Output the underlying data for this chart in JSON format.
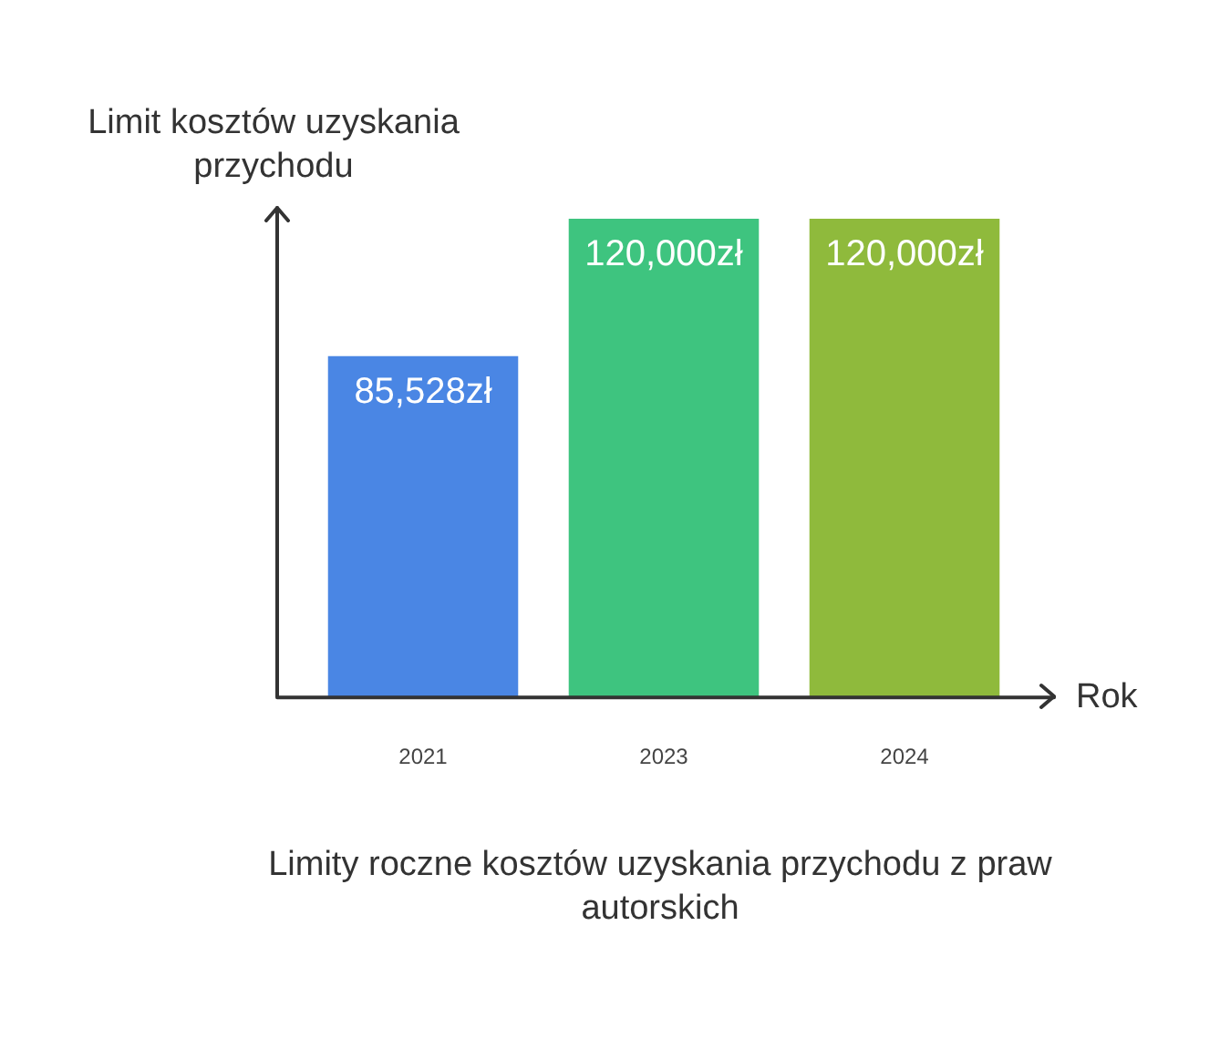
{
  "chart_data": {
    "type": "bar",
    "title": "Limity roczne kosztów uzyskania przychodu z praw autorskich",
    "xlabel": "Rok",
    "ylabel": "Limit kosztów uzyskania przychodu",
    "categories": [
      "2021",
      "2023",
      "2024"
    ],
    "values": [
      85528,
      120000,
      120000
    ],
    "colors": [
      "#4a86e4",
      "#3ec47f",
      "#8fba3c"
    ],
    "value_labels": [
      "85,528zł",
      "120,000zł",
      "120,000zł"
    ],
    "grid": false,
    "legend": false
  }
}
